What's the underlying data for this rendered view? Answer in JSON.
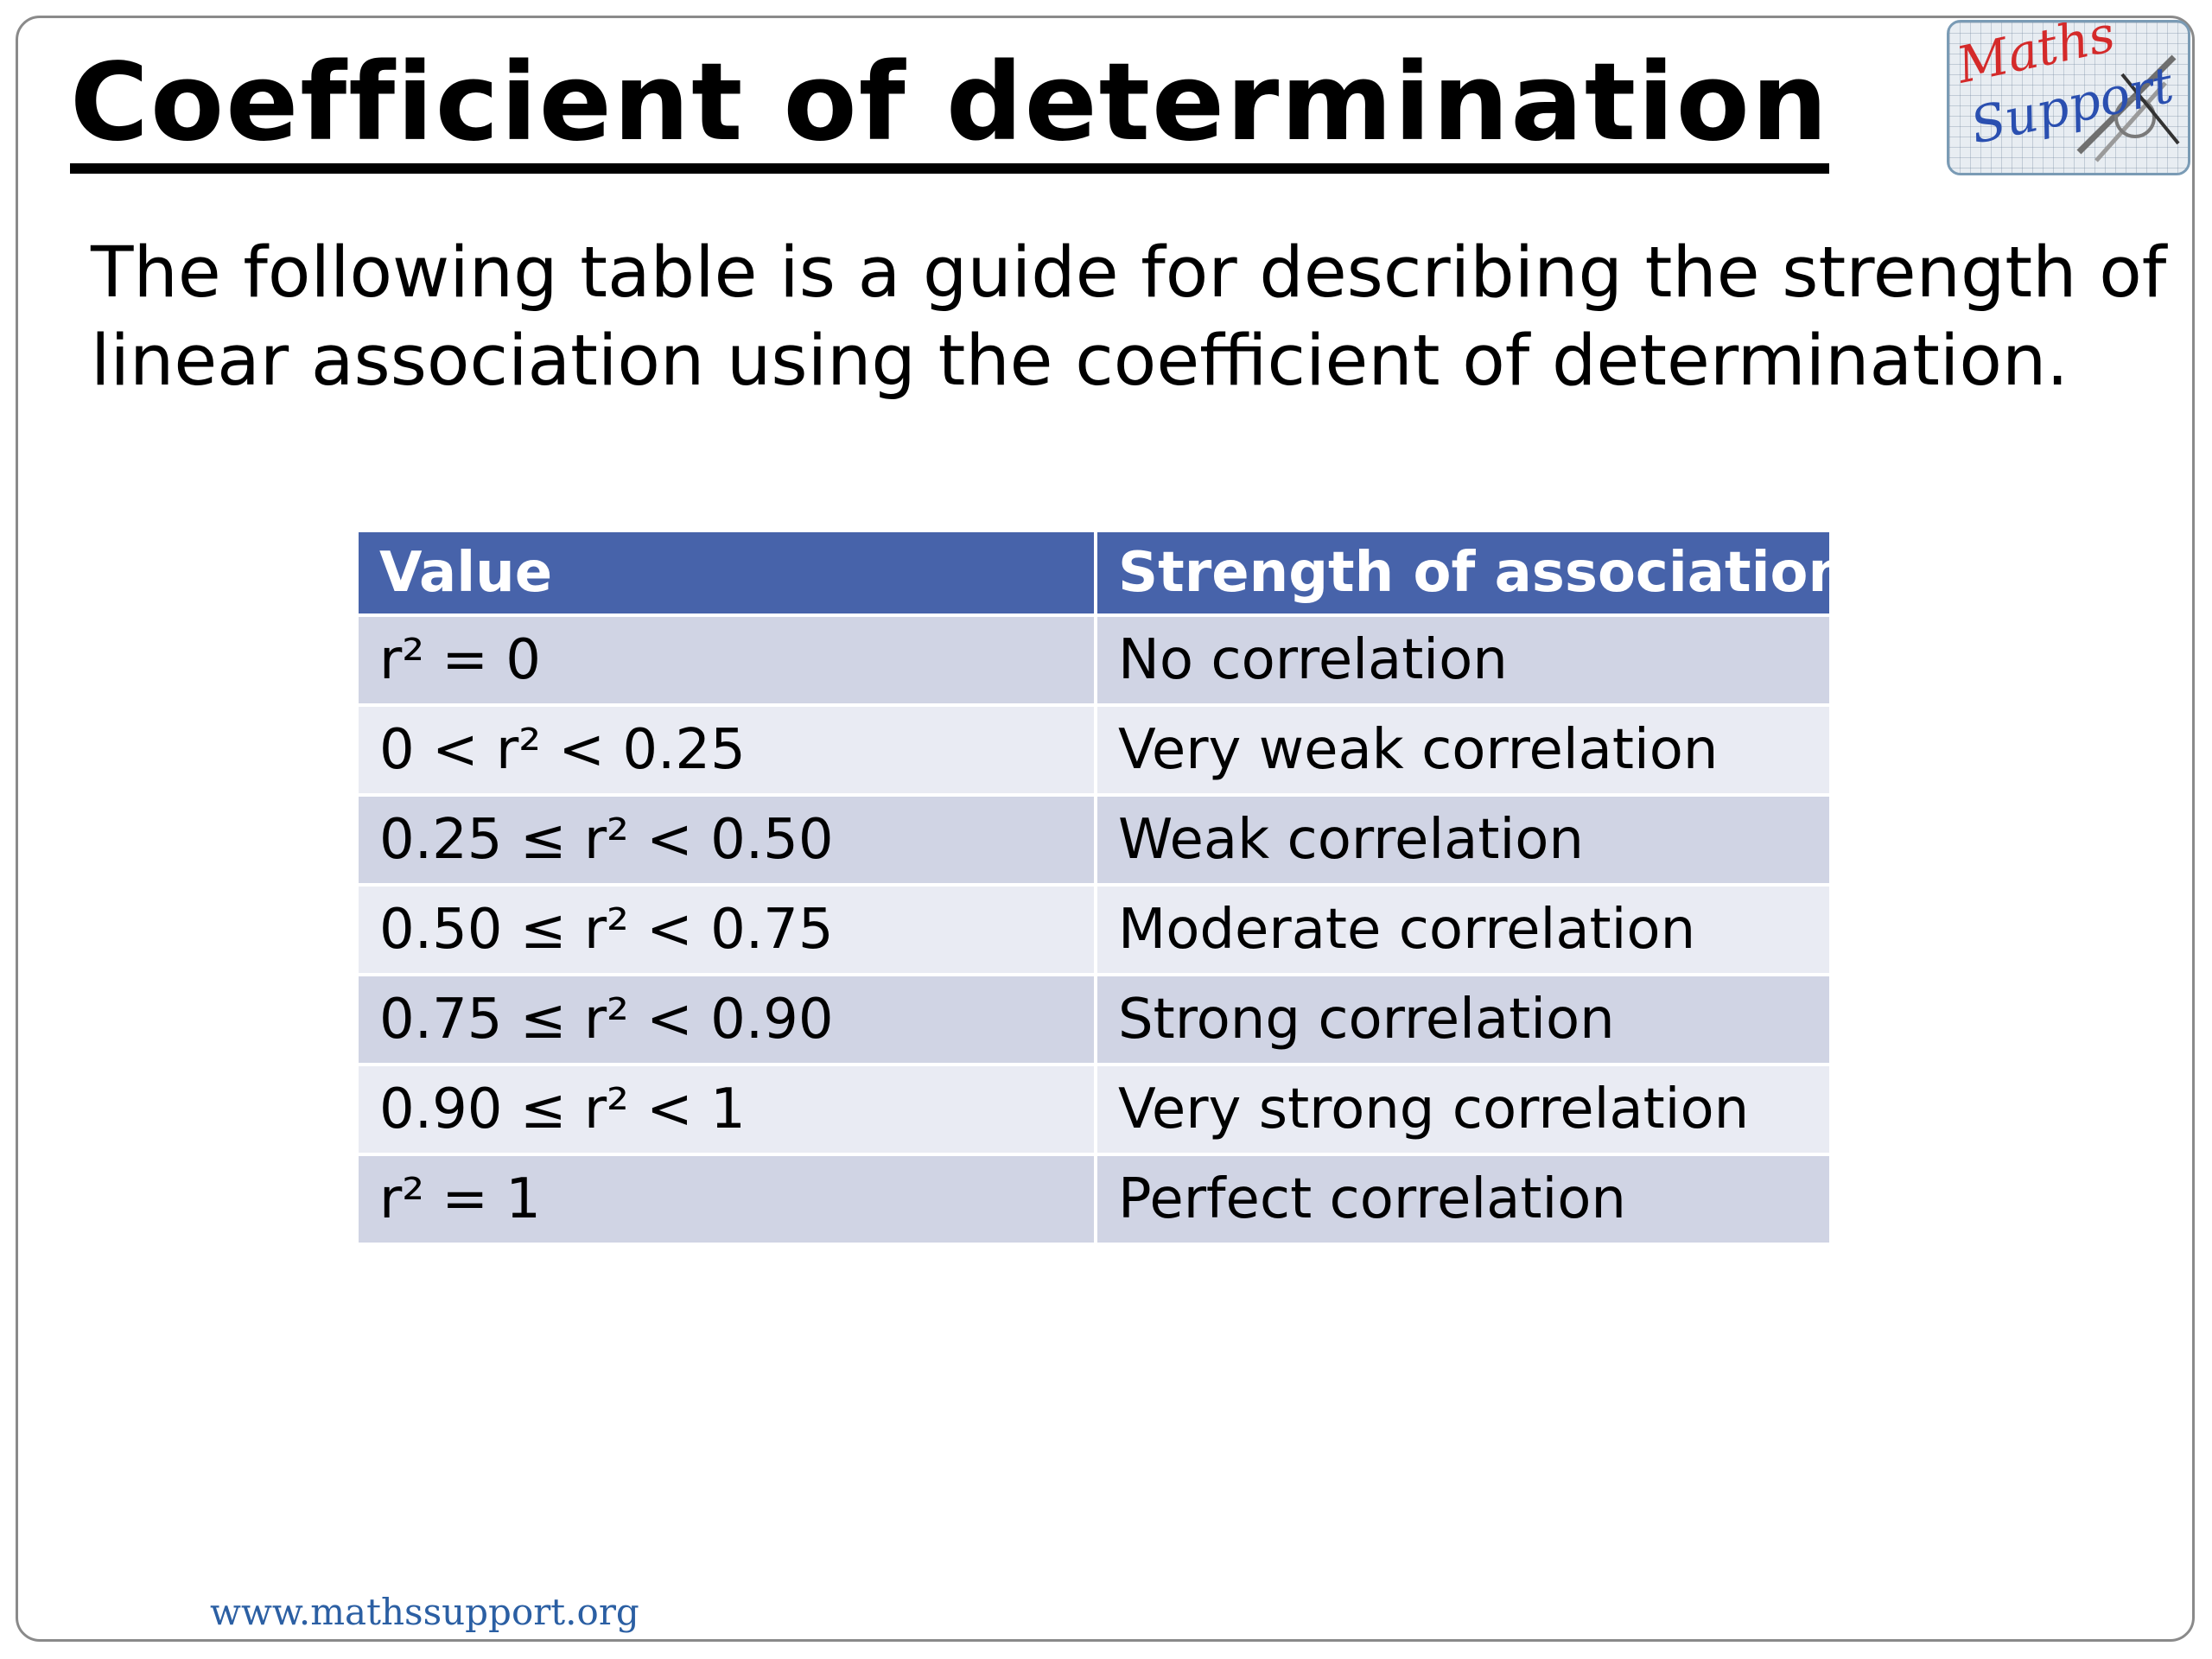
{
  "title": "Coefficient of determination",
  "logo": {
    "line1": "Maths",
    "line2": "Support",
    "icon": "compass-ruler-icon"
  },
  "intro": "The following table is a guide for describing the strength of linear association using the coefficient of determination.",
  "table": {
    "headers": [
      "Value",
      "Strength of association"
    ],
    "rows": [
      {
        "value": "r² = 0",
        "strength": "No correlation"
      },
      {
        "value": "0 < r² < 0.25",
        "strength": "Very weak correlation"
      },
      {
        "value": "0.25 ≤ r² < 0.50",
        "strength": "Weak correlation"
      },
      {
        "value": "0.50 ≤ r² < 0.75",
        "strength": "Moderate correlation"
      },
      {
        "value": "0.75 ≤ r² < 0.90",
        "strength": "Strong correlation"
      },
      {
        "value": "0.90 ≤ r² < 1",
        "strength": "Very strong correlation"
      },
      {
        "value": "r² = 1",
        "strength": "Perfect correlation"
      }
    ]
  },
  "footer": "www.mathssupport.org",
  "colors": {
    "header_bg": "#4763aa",
    "row_dark": "#d0d4e4",
    "row_light": "#e9ebf3",
    "footer_link": "#2b5fa3",
    "logo_red": "#d42a2a",
    "logo_blue": "#2a4fb0"
  }
}
